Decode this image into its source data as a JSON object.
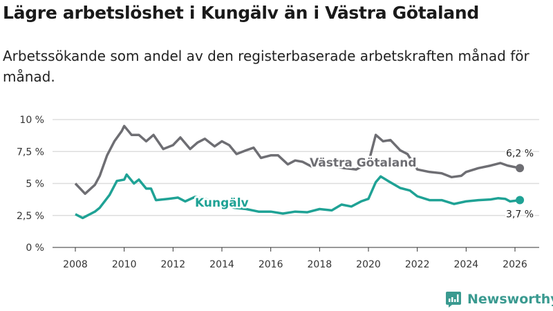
{
  "header": {
    "title": "Lägre arbetslöshet i Kungälv än i Västra Götaland",
    "subtitle": "Arbetssökande som andel av den registerbaserade arbetskraften månad för månad."
  },
  "brand": {
    "name": "Newsworthy",
    "color": "#3a9a90"
  },
  "chart_data": {
    "type": "line",
    "title": "Lägre arbetslöshet i Kungälv än i Västra Götaland",
    "xlabel": "",
    "ylabel": "",
    "xlim": [
      2007.6,
      2026.6
    ],
    "ylim": [
      0,
      10
    ],
    "x_ticks": [
      2008,
      2010,
      2012,
      2014,
      2016,
      2018,
      2020,
      2022,
      2024,
      2026
    ],
    "x_tick_labels": [
      "2008",
      "2010",
      "2012",
      "2014",
      "2016",
      "2018",
      "2020",
      "2022",
      "2024",
      "2026"
    ],
    "y_ticks": [
      0,
      2.5,
      5,
      7.5,
      10
    ],
    "y_tick_labels": [
      "0 %",
      "2,5 %",
      "5 %",
      "7,5 %",
      "10 %"
    ],
    "grid": true,
    "series": [
      {
        "name": "Västra Götaland",
        "color": "#6e6e73",
        "end_label": "6,2 %",
        "x": [
          2008.0,
          2008.4,
          2008.8,
          2009.0,
          2009.3,
          2009.6,
          2009.9,
          2010.0,
          2010.3,
          2010.6,
          2010.9,
          2011.2,
          2011.6,
          2012.0,
          2012.3,
          2012.7,
          2013.0,
          2013.3,
          2013.7,
          2014.0,
          2014.3,
          2014.6,
          2015.0,
          2015.3,
          2015.6,
          2016.0,
          2016.3,
          2016.7,
          2017.0,
          2017.3,
          2017.7,
          2018.0,
          2018.5,
          2019.0,
          2019.5,
          2020.0,
          2020.3,
          2020.6,
          2020.9,
          2021.3,
          2021.6,
          2022.0,
          2022.5,
          2023.0,
          2023.4,
          2023.8,
          2024.0,
          2024.5,
          2025.0,
          2025.4,
          2025.7,
          2026.2
        ],
        "y": [
          5.0,
          4.2,
          4.9,
          5.6,
          7.2,
          8.3,
          9.1,
          9.5,
          8.8,
          8.8,
          8.3,
          8.8,
          7.7,
          8.0,
          8.6,
          7.7,
          8.2,
          8.5,
          7.9,
          8.3,
          8.0,
          7.3,
          7.6,
          7.8,
          7.0,
          7.2,
          7.2,
          6.5,
          6.8,
          6.7,
          6.3,
          6.5,
          6.4,
          6.2,
          6.1,
          6.6,
          8.8,
          8.3,
          8.4,
          7.6,
          7.3,
          6.1,
          5.9,
          5.8,
          5.5,
          5.6,
          5.9,
          6.2,
          6.4,
          6.6,
          6.4,
          6.2
        ]
      },
      {
        "name": "Kungälv",
        "color": "#1fa295",
        "end_label": "3,7 %",
        "x": [
          2008.0,
          2008.3,
          2008.8,
          2009.0,
          2009.4,
          2009.7,
          2010.0,
          2010.1,
          2010.4,
          2010.6,
          2010.9,
          2011.1,
          2011.3,
          2011.8,
          2012.2,
          2012.5,
          2012.9,
          2013.5,
          2014.0,
          2014.5,
          2015.0,
          2015.5,
          2016.0,
          2016.5,
          2017.0,
          2017.5,
          2018.0,
          2018.5,
          2018.9,
          2019.3,
          2019.7,
          2020.0,
          2020.3,
          2020.5,
          2020.8,
          2021.3,
          2021.7,
          2022.0,
          2022.5,
          2023.0,
          2023.5,
          2024.0,
          2024.5,
          2025.0,
          2025.3,
          2025.6,
          2025.8,
          2026.2
        ],
        "y": [
          2.6,
          2.3,
          2.8,
          3.1,
          4.1,
          5.2,
          5.3,
          5.7,
          5.0,
          5.3,
          4.6,
          4.6,
          3.7,
          3.8,
          3.9,
          3.6,
          3.95,
          3.7,
          3.4,
          3.1,
          3.0,
          2.8,
          2.8,
          2.65,
          2.8,
          2.75,
          3.0,
          2.9,
          3.35,
          3.2,
          3.6,
          3.8,
          5.1,
          5.55,
          5.2,
          4.65,
          4.45,
          4.0,
          3.7,
          3.7,
          3.4,
          3.6,
          3.7,
          3.75,
          3.85,
          3.8,
          3.6,
          3.7
        ]
      }
    ]
  }
}
